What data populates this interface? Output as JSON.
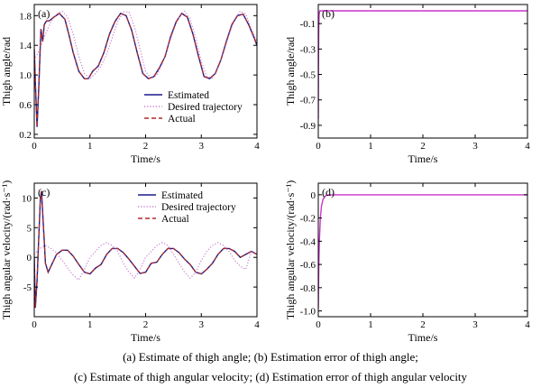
{
  "captions": [
    "(a) Estimate of thigh angle; (b) Estimation error of thigh angle;",
    "(c) Estimate of thigh angular velocity; (d) Estimation error of thigh angular velocity"
  ],
  "colors": {
    "estimated": "#1a1a8c",
    "desired": "#c77dd1",
    "actual": "#b02a2a",
    "error": "#cc33cc"
  },
  "chart_data": [
    {
      "panel": "(a)",
      "type": "line",
      "xlabel": "Time/s",
      "ylabel": "Thigh angle/rad",
      "xlim": [
        0,
        4
      ],
      "ylim": [
        0.15,
        1.95
      ],
      "xticks": [
        0,
        1,
        2,
        3,
        4
      ],
      "yticks": [
        0.2,
        0.6,
        1.0,
        1.4,
        1.8
      ],
      "xticklabels": [
        "0",
        "1",
        "2",
        "3",
        "4"
      ],
      "yticklabels": [
        "0.2",
        "0.6",
        "1.0",
        "1.4",
        "1.8"
      ],
      "legend": {
        "placement": "lower-right",
        "entries": [
          "Estimated",
          "Desired trajectory",
          "Actual"
        ]
      },
      "series": [
        {
          "name": "Estimated",
          "style": "solid",
          "x": [
            0,
            0.02,
            0.05,
            0.08,
            0.12,
            0.15,
            0.18,
            0.22,
            0.27,
            0.35,
            0.45,
            0.55,
            0.62,
            0.7,
            0.8,
            0.9,
            0.97,
            1.05,
            1.15,
            1.25,
            1.35,
            1.45,
            1.55,
            1.65,
            1.75,
            1.85,
            1.95,
            2.05,
            2.15,
            2.25,
            2.35,
            2.45,
            2.55,
            2.65,
            2.75,
            2.85,
            2.95,
            3.05,
            3.15,
            3.25,
            3.35,
            3.45,
            3.55,
            3.65,
            3.75,
            3.85,
            3.95,
            4.0
          ],
          "y": [
            1.35,
            0.9,
            0.3,
            0.8,
            1.62,
            1.45,
            1.68,
            1.73,
            1.73,
            1.78,
            1.83,
            1.75,
            1.55,
            1.3,
            1.05,
            0.95,
            0.95,
            1.05,
            1.12,
            1.3,
            1.55,
            1.72,
            1.83,
            1.8,
            1.6,
            1.3,
            1.02,
            0.95,
            0.98,
            1.1,
            1.25,
            1.52,
            1.72,
            1.83,
            1.78,
            1.55,
            1.25,
            0.98,
            0.95,
            1.02,
            1.2,
            1.45,
            1.68,
            1.8,
            1.82,
            1.68,
            1.5,
            1.4
          ]
        },
        {
          "name": "Desired trajectory",
          "style": "dotted",
          "x": [
            0,
            0.1,
            0.2,
            0.3,
            0.4,
            0.5,
            0.6,
            0.7,
            0.8,
            0.9,
            1.0,
            1.1,
            1.2,
            1.3,
            1.4,
            1.5,
            1.6,
            1.7,
            1.8,
            1.9,
            2.0,
            2.1,
            2.2,
            2.3,
            2.4,
            2.5,
            2.6,
            2.7,
            2.8,
            2.9,
            3.0,
            3.1,
            3.2,
            3.3,
            3.4,
            3.5,
            3.6,
            3.7,
            3.8,
            3.9,
            4.0
          ],
          "y": [
            1.2,
            1.35,
            1.55,
            1.72,
            1.82,
            1.86,
            1.78,
            1.55,
            1.25,
            1.02,
            0.95,
            1.02,
            1.12,
            1.28,
            1.5,
            1.72,
            1.85,
            1.85,
            1.65,
            1.35,
            1.05,
            0.95,
            1.0,
            1.15,
            1.38,
            1.6,
            1.78,
            1.86,
            1.75,
            1.5,
            1.18,
            0.98,
            0.96,
            1.1,
            1.3,
            1.55,
            1.75,
            1.86,
            1.82,
            1.62,
            1.45
          ]
        },
        {
          "name": "Actual",
          "style": "dashed",
          "x": [
            0,
            0.02,
            0.05,
            0.08,
            0.12,
            0.15,
            0.18,
            0.22,
            0.27,
            0.35,
            0.45,
            0.55,
            0.62,
            0.7,
            0.8,
            0.9,
            0.97,
            1.05,
            1.15,
            1.25,
            1.35,
            1.45,
            1.55,
            1.65,
            1.75,
            1.85,
            1.95,
            2.05,
            2.15,
            2.25,
            2.35,
            2.45,
            2.55,
            2.65,
            2.75,
            2.85,
            2.95,
            3.05,
            3.15,
            3.25,
            3.35,
            3.45,
            3.55,
            3.65,
            3.75,
            3.85,
            3.95,
            4.0
          ],
          "y": [
            1.35,
            0.9,
            0.3,
            0.8,
            1.62,
            1.45,
            1.68,
            1.73,
            1.73,
            1.78,
            1.83,
            1.75,
            1.55,
            1.3,
            1.05,
            0.95,
            0.95,
            1.05,
            1.12,
            1.3,
            1.55,
            1.72,
            1.83,
            1.8,
            1.6,
            1.3,
            1.02,
            0.95,
            0.98,
            1.1,
            1.25,
            1.52,
            1.72,
            1.83,
            1.78,
            1.55,
            1.25,
            0.98,
            0.95,
            1.02,
            1.2,
            1.45,
            1.68,
            1.8,
            1.82,
            1.68,
            1.5,
            1.4
          ]
        }
      ]
    },
    {
      "panel": "(b)",
      "type": "line",
      "xlabel": "Time/s",
      "ylabel": "Thigh angle/rad",
      "xlim": [
        0,
        4
      ],
      "ylim": [
        -1.0,
        0.05
      ],
      "xticks": [
        0,
        1,
        2,
        3,
        4
      ],
      "yticks": [
        -0.1,
        -0.3,
        -0.5,
        -0.7,
        -0.9
      ],
      "xticklabels": [
        "0",
        "1",
        "2",
        "3",
        "4"
      ],
      "yticklabels": [
        "-0.1",
        "-0.3",
        "-0.5",
        "-0.7",
        "-0.9"
      ],
      "series": [
        {
          "style": "solid",
          "x": [
            0,
            0.003,
            0.008,
            0.015,
            0.03,
            0.06,
            4.0
          ],
          "y": [
            -0.85,
            -0.45,
            -0.15,
            -0.03,
            0.0,
            0.0,
            0.0
          ]
        }
      ]
    },
    {
      "panel": "(c)",
      "type": "line",
      "xlabel": "Time/s",
      "ylabel": "Thigh angular velocity/(rad·s⁻¹)",
      "xlim": [
        0,
        4
      ],
      "ylim": [
        -10,
        12.5
      ],
      "xticks": [
        0,
        1,
        2,
        3,
        4
      ],
      "yticks": [
        -5,
        0,
        5,
        10
      ],
      "xticklabels": [
        "0",
        "1",
        "2",
        "3",
        "4"
      ],
      "yticklabels": [
        "-5",
        "0",
        "5",
        "10"
      ],
      "legend": {
        "placement": "upper-right",
        "entries": [
          "Estimated",
          "Desired trajectory",
          "Actual"
        ]
      },
      "series": [
        {
          "name": "Estimated",
          "style": "solid",
          "x": [
            0,
            0.02,
            0.05,
            0.08,
            0.11,
            0.13,
            0.16,
            0.2,
            0.25,
            0.3,
            0.4,
            0.5,
            0.6,
            0.7,
            0.8,
            0.9,
            1.0,
            1.1,
            1.2,
            1.3,
            1.4,
            1.5,
            1.6,
            1.7,
            1.8,
            1.9,
            2.0,
            2.1,
            2.2,
            2.3,
            2.4,
            2.5,
            2.6,
            2.7,
            2.8,
            2.9,
            3.0,
            3.1,
            3.2,
            3.3,
            3.4,
            3.5,
            3.6,
            3.7,
            3.8,
            3.9,
            4.0
          ],
          "y": [
            0,
            -8.5,
            -4,
            3,
            10,
            11.2,
            6,
            -1,
            -2.5,
            -1.5,
            0.5,
            1.2,
            1.2,
            0.2,
            -1.2,
            -2.5,
            -2.8,
            -1.8,
            -1.2,
            0.5,
            1.5,
            1.5,
            0.8,
            -0.3,
            -1.5,
            -2.7,
            -2.5,
            -1.0,
            -0.8,
            0.5,
            1.5,
            1.5,
            0.8,
            -0.3,
            -1.2,
            -2.5,
            -2.8,
            -2.0,
            -1.0,
            0.5,
            1.5,
            1.5,
            1.0,
            0.0,
            0.5,
            1.0,
            0.5
          ]
        },
        {
          "name": "Desired trajectory",
          "style": "dotted",
          "x": [
            0,
            0.1,
            0.2,
            0.3,
            0.4,
            0.5,
            0.6,
            0.7,
            0.8,
            0.9,
            1.0,
            1.1,
            1.2,
            1.3,
            1.4,
            1.5,
            1.6,
            1.7,
            1.8,
            1.9,
            2.0,
            2.1,
            2.2,
            2.3,
            2.4,
            2.5,
            2.6,
            2.7,
            2.8,
            2.9,
            3.0,
            3.1,
            3.2,
            3.3,
            3.4,
            3.5,
            3.6,
            3.7,
            3.8,
            3.9,
            4.0
          ],
          "y": [
            0.5,
            1.5,
            2.0,
            1.5,
            0.8,
            -0.5,
            -1.8,
            -3.0,
            -3.8,
            -2.0,
            0.0,
            1.0,
            2.0,
            2.5,
            2.0,
            1.0,
            -1.0,
            -2.5,
            -3.5,
            -2.0,
            0.0,
            1.0,
            2.0,
            2.5,
            2.0,
            0.5,
            -1.0,
            -2.5,
            -3.5,
            -2.5,
            -0.5,
            1.0,
            2.0,
            2.5,
            2.0,
            1.0,
            -0.5,
            -1.5,
            -2.0,
            1.0,
            0.5
          ]
        },
        {
          "name": "Actual",
          "style": "dashed",
          "x": [
            0,
            0.02,
            0.05,
            0.08,
            0.11,
            0.13,
            0.16,
            0.2,
            0.25,
            0.3,
            0.4,
            0.5,
            0.6,
            0.7,
            0.8,
            0.9,
            1.0,
            1.1,
            1.2,
            1.3,
            1.4,
            1.5,
            1.6,
            1.7,
            1.8,
            1.9,
            2.0,
            2.1,
            2.2,
            2.3,
            2.4,
            2.5,
            2.6,
            2.7,
            2.8,
            2.9,
            3.0,
            3.1,
            3.2,
            3.3,
            3.4,
            3.5,
            3.6,
            3.7,
            3.8,
            3.9,
            4.0
          ],
          "y": [
            0,
            -8.5,
            -4,
            3,
            10,
            11.2,
            6,
            -1,
            -2.5,
            -1.5,
            0.5,
            1.2,
            1.2,
            0.2,
            -1.2,
            -2.5,
            -2.8,
            -1.8,
            -1.2,
            0.5,
            1.5,
            1.5,
            0.8,
            -0.3,
            -1.5,
            -2.7,
            -2.5,
            -1.0,
            -0.8,
            0.5,
            1.5,
            1.5,
            0.8,
            -0.3,
            -1.2,
            -2.5,
            -2.8,
            -2.0,
            -1.0,
            0.5,
            1.5,
            1.5,
            1.0,
            0.0,
            0.5,
            1.0,
            0.5
          ]
        }
      ]
    },
    {
      "panel": "(d)",
      "type": "line",
      "xlabel": "Time/s",
      "ylabel": "Thigh angular velocity/(rad·s⁻¹)",
      "xlim": [
        0,
        4
      ],
      "ylim": [
        -1.05,
        0.1
      ],
      "xticks": [
        0,
        1,
        2,
        3,
        4
      ],
      "yticks": [
        0,
        -0.2,
        -0.4,
        -0.6,
        -0.8,
        -1.0
      ],
      "xticklabels": [
        "0",
        "1",
        "2",
        "3",
        "4"
      ],
      "yticklabels": [
        "0",
        "-0.2",
        "-0.4",
        "-0.6",
        "-0.8",
        "-1.0"
      ],
      "series": [
        {
          "style": "solid",
          "x": [
            0,
            0.01,
            0.02,
            0.04,
            0.06,
            0.09,
            0.12,
            0.16,
            0.2,
            0.3,
            4.0
          ],
          "y": [
            -0.98,
            -0.6,
            -0.4,
            -0.2,
            -0.1,
            -0.04,
            -0.015,
            -0.005,
            0.0,
            0.0,
            0.0
          ]
        }
      ]
    }
  ]
}
